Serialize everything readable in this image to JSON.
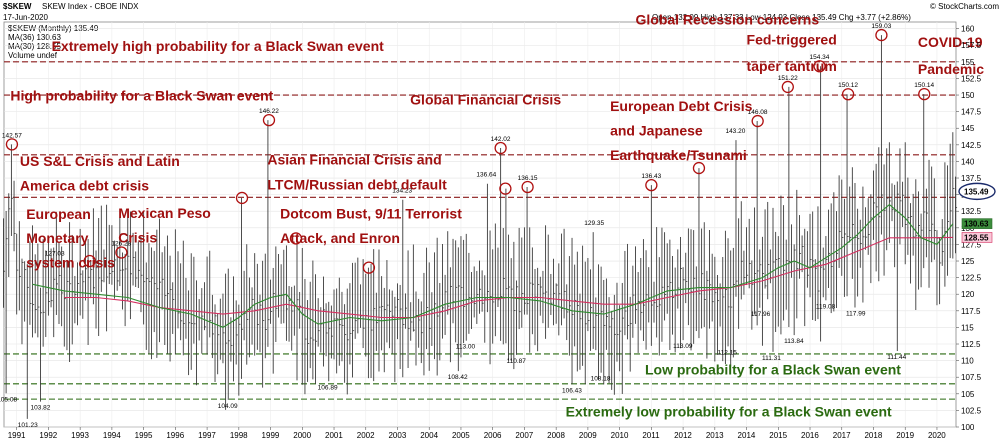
{
  "header": {
    "symbol": "$SKEW",
    "name": "SKEW Index - CBOE INDX",
    "date": "17-Jun-2020",
    "brand": "© StockCharts.com",
    "ohlc": "Open 132.09  High 137.33  Low 124.93  Close 135.49  Chg +3.77 (+2.86%)",
    "legend_price": "$SKEW (Monthly) 135.49",
    "legend_ma1": "MA(36) 130.63",
    "legend_ma2": "MA(30) 128.55",
    "legend_volume": "Volume undef"
  },
  "colors": {
    "price": "#3a3a3a",
    "ma_fast": "#2e8b2e",
    "ma_slow": "#d43060",
    "red_label": "#a01010",
    "green_label": "#2a6a10",
    "red_line": "#8b1a1a",
    "green_line": "#2a6a10"
  },
  "chart_data": {
    "type": "line",
    "title": "$SKEW SKEW Index - CBOE INDX",
    "ylim": [
      100,
      161
    ],
    "xlim": [
      1990.6,
      2020.6
    ],
    "y_ticks": [
      100,
      102.5,
      105,
      107.5,
      110,
      112.5,
      115,
      117.5,
      120,
      122.5,
      125,
      127.5,
      130,
      132.5,
      135,
      137.5,
      140,
      142.5,
      145,
      147.5,
      150,
      152.5,
      155,
      157.5,
      160
    ],
    "x_ticks": [
      "1991",
      "1992",
      "1993",
      "1994",
      "1995",
      "1996",
      "1997",
      "1998",
      "1999",
      "2000",
      "2001",
      "2002",
      "2003",
      "2004",
      "2005",
      "2006",
      "2007",
      "2008",
      "2009",
      "2010",
      "2011",
      "2012",
      "2013",
      "2014",
      "2015",
      "2016",
      "2017",
      "2018",
      "2019",
      "2020"
    ],
    "x_tick_values": [
      1991,
      1992,
      1993,
      1994,
      1995,
      1996,
      1997,
      1998,
      1999,
      2000,
      2001,
      2002,
      2003,
      2004,
      2005,
      2006,
      2007,
      2008,
      2009,
      2010,
      2011,
      2012,
      2013,
      2014,
      2015,
      2016,
      2017,
      2018,
      2019,
      2020
    ],
    "anchors": {
      "x": [
        1990.6,
        1990.8,
        1991.0,
        1991.4,
        1991.8,
        1992.2,
        1992.7,
        1993.2,
        1993.7,
        1994.2,
        1994.7,
        1995.2,
        1995.8,
        1996.5,
        1997.0,
        1997.6,
        1998.0,
        1998.4,
        1998.8,
        1999.2,
        1999.7,
        2000.2,
        2000.7,
        2001.3,
        2001.8,
        2002.3,
        2002.7,
        2003.2,
        2003.8,
        2004.3,
        2004.9,
        2005.4,
        2005.9,
        2006.3,
        2006.8,
        2007.3,
        2007.8,
        2008.3,
        2008.8,
        2009.4,
        2009.9,
        2010.4,
        2010.9,
        2011.4,
        2011.9,
        2012.4,
        2012.9,
        2013.4,
        2013.9,
        2014.3,
        2014.8,
        2015.3,
        2015.8,
        2016.2,
        2016.7,
        2017.2,
        2017.6,
        2018.0,
        2018.5,
        2018.9,
        2019.3,
        2019.7,
        2020.1,
        2020.5
      ],
      "y": [
        125,
        135,
        125,
        120,
        118,
        122,
        120,
        122,
        124,
        124,
        124,
        121,
        120,
        116,
        117,
        113,
        115,
        118,
        116,
        120,
        119,
        114,
        116,
        114,
        117,
        116,
        118,
        117,
        116,
        118,
        120,
        120,
        120,
        121,
        119,
        121,
        120,
        119,
        117,
        116,
        114,
        118,
        120,
        119,
        122,
        122,
        120,
        119,
        124,
        122,
        124,
        125,
        126,
        122,
        126,
        130,
        129,
        132,
        134,
        134,
        128,
        132,
        126,
        134
      ]
    },
    "ma_fast": {
      "x": [
        1991.5,
        1992.5,
        1993.5,
        1994.5,
        1995.5,
        1996.5,
        1997.5,
        1998.0,
        1998.5,
        1999.0,
        1999.5,
        2000.0,
        2000.5,
        2001.5,
        2002.5,
        2003.5,
        2004.5,
        2005.5,
        2006.5,
        2007.5,
        2008.5,
        2009.5,
        2010.5,
        2011.5,
        2012.5,
        2013.5,
        2014.5,
        2015.0,
        2015.5,
        2016.0,
        2016.5,
        2017.0,
        2017.5,
        2018.0,
        2018.5,
        2019.0,
        2019.5,
        2020.0,
        2020.5
      ],
      "y": [
        121.5,
        120.5,
        120.0,
        119.5,
        118.0,
        117.0,
        115.0,
        116.5,
        118.5,
        119.5,
        120.0,
        117.0,
        115.5,
        116.5,
        116.0,
        116.5,
        118.5,
        119.5,
        119.5,
        119.0,
        117.5,
        117.0,
        118.5,
        120.5,
        121.0,
        121.0,
        122.5,
        124.0,
        125.0,
        124.0,
        125.5,
        127.0,
        129.0,
        131.5,
        133.5,
        131.5,
        128.5,
        127.5,
        130.6
      ]
    },
    "ma_slow": {
      "x": [
        1992.5,
        1993.5,
        1994.5,
        1995.5,
        1996.5,
        1997.5,
        1998.5,
        1999.5,
        2000.5,
        2001.5,
        2002.5,
        2003.5,
        2004.5,
        2005.5,
        2006.5,
        2007.5,
        2008.5,
        2009.5,
        2010.5,
        2011.5,
        2012.5,
        2013.5,
        2014.5,
        2015.5,
        2016.5,
        2017.5,
        2018.5,
        2019.5,
        2020.5
      ],
      "y": [
        119.5,
        119.5,
        119.0,
        118.0,
        117.5,
        117.0,
        117.5,
        118.5,
        117.5,
        117.0,
        116.5,
        116.5,
        117.5,
        119.0,
        119.5,
        119.5,
        119.0,
        118.5,
        118.5,
        119.5,
        120.5,
        121.0,
        122.0,
        123.5,
        124.5,
        126.5,
        128.5,
        128.5,
        128.55
      ]
    },
    "point_labels": [
      {
        "x": 1990.85,
        "y": 142.57,
        "label": "142.57",
        "circle": true
      },
      {
        "x": 1990.7,
        "y": 105.08,
        "label": "105.08",
        "circle": false
      },
      {
        "x": 1991.35,
        "y": 101.23,
        "label": "101.23",
        "circle": false
      },
      {
        "x": 1991.75,
        "y": 103.82,
        "label": "103.82",
        "circle": false
      },
      {
        "x": 1992.2,
        "y": 127.03,
        "label": "127.03",
        "circle": false
      },
      {
        "x": 1993.3,
        "y": 125.0,
        "label": "",
        "circle": true
      },
      {
        "x": 1994.3,
        "y": 126.28,
        "label": "126.28",
        "circle": true
      },
      {
        "x": 1997.65,
        "y": 104.09,
        "label": "104.09",
        "circle": false
      },
      {
        "x": 1998.1,
        "y": 134.5,
        "label": "",
        "circle": true
      },
      {
        "x": 1998.95,
        "y": 146.22,
        "label": "146.22",
        "circle": true
      },
      {
        "x": 1999.8,
        "y": 128.4,
        "label": "",
        "circle": true
      },
      {
        "x": 2000.8,
        "y": 106.89,
        "label": "106.89",
        "circle": false
      },
      {
        "x": 2002.1,
        "y": 124.0,
        "label": "",
        "circle": true
      },
      {
        "x": 2003.15,
        "y": 134.23,
        "label": "134.23",
        "circle": false
      },
      {
        "x": 2004.9,
        "y": 108.42,
        "label": "108.42",
        "circle": false
      },
      {
        "x": 2005.15,
        "y": 113.0,
        "label": "113.00",
        "circle": false
      },
      {
        "x": 2005.8,
        "y": 136.64,
        "label": "136.64",
        "circle": false
      },
      {
        "x": 2006.25,
        "y": 142.02,
        "label": "142.02",
        "circle": true
      },
      {
        "x": 2006.4,
        "y": 135.9,
        "label": "",
        "circle": true
      },
      {
        "x": 2006.75,
        "y": 110.87,
        "label": "110.87",
        "circle": false
      },
      {
        "x": 2007.1,
        "y": 136.15,
        "label": "136.15",
        "circle": true
      },
      {
        "x": 2008.5,
        "y": 106.43,
        "label": "106.43",
        "circle": false
      },
      {
        "x": 2009.2,
        "y": 129.35,
        "label": "129.35",
        "circle": false
      },
      {
        "x": 2009.4,
        "y": 108.18,
        "label": "108.18",
        "circle": false
      },
      {
        "x": 2011.0,
        "y": 136.43,
        "label": "136.43",
        "circle": true
      },
      {
        "x": 2012.0,
        "y": 113.09,
        "label": "113.09",
        "circle": false
      },
      {
        "x": 2012.5,
        "y": 139.0,
        "label": "",
        "circle": true
      },
      {
        "x": 2013.4,
        "y": 112.15,
        "label": "112.15",
        "circle": false
      },
      {
        "x": 2013.65,
        "y": 143.2,
        "label": "143.20",
        "circle": false
      },
      {
        "x": 2014.35,
        "y": 146.08,
        "label": "146.08",
        "circle": true
      },
      {
        "x": 2014.45,
        "y": 117.96,
        "label": "117.96",
        "circle": false
      },
      {
        "x": 2014.8,
        "y": 111.31,
        "label": "111.31",
        "circle": false
      },
      {
        "x": 2015.3,
        "y": 151.22,
        "label": "151.22",
        "circle": true
      },
      {
        "x": 2015.5,
        "y": 113.84,
        "label": "113.84",
        "circle": false
      },
      {
        "x": 2016.3,
        "y": 154.34,
        "label": "154.34",
        "circle": true
      },
      {
        "x": 2016.5,
        "y": 119.08,
        "label": "119.08",
        "circle": false
      },
      {
        "x": 2017.2,
        "y": 150.12,
        "label": "150.12",
        "circle": true
      },
      {
        "x": 2017.45,
        "y": 117.99,
        "label": "117.99",
        "circle": false
      },
      {
        "x": 2018.25,
        "y": 159.03,
        "label": "159.03",
        "circle": true
      },
      {
        "x": 2018.75,
        "y": 111.44,
        "label": "111.44",
        "circle": false
      },
      {
        "x": 2019.6,
        "y": 150.14,
        "label": "150.14",
        "circle": true
      }
    ],
    "hlines": [
      {
        "y": 155.0,
        "color": "red",
        "dash": true
      },
      {
        "y": 150.0,
        "color": "red",
        "dash": true
      },
      {
        "y": 141.0,
        "color": "red",
        "dash": true
      },
      {
        "y": 134.6,
        "color": "red",
        "dash": true
      },
      {
        "y": 111.0,
        "color": "green",
        "dash": true
      },
      {
        "y": 106.5,
        "color": "green",
        "dash": true
      },
      {
        "y": 104.2,
        "color": "green",
        "dash": true
      }
    ],
    "price_tags": [
      {
        "y": 135.49,
        "label": "135.49",
        "style": "circle"
      },
      {
        "y": 130.63,
        "label": "130.63",
        "style": "green"
      },
      {
        "y": 128.55,
        "label": "128.55",
        "style": "pink"
      }
    ],
    "annotations": [
      {
        "text": "Global Recession concerns",
        "x": 2010.5,
        "y": 160.6,
        "color": "red"
      },
      {
        "text": "Extremely high probability for a Black Swan event",
        "x": 1992.1,
        "y": 156.6,
        "color": "red"
      },
      {
        "text": "Fed-triggered",
        "x": 2014.0,
        "y": 157.6,
        "color": "red"
      },
      {
        "text": "taper tantrum",
        "x": 2014.0,
        "y": 153.6,
        "color": "red"
      },
      {
        "text": "COVID-19",
        "x": 2019.4,
        "y": 157.2,
        "color": "red"
      },
      {
        "text": "Pandemic",
        "x": 2019.4,
        "y": 153.2,
        "color": "red"
      },
      {
        "text": "High probability for a Black Swan event",
        "x": 1990.8,
        "y": 149.2,
        "color": "red"
      },
      {
        "text": "Global Financial Crisis",
        "x": 2003.4,
        "y": 148.6,
        "color": "red"
      },
      {
        "text": "European Debt Crisis",
        "x": 2009.7,
        "y": 147.6,
        "color": "red"
      },
      {
        "text": "and Japanese",
        "x": 2009.7,
        "y": 143.9,
        "color": "red"
      },
      {
        "text": "Earthquake/Tsunami",
        "x": 2009.7,
        "y": 140.2,
        "color": "red"
      },
      {
        "text": "US S&L Crisis and Latin",
        "x": 1991.1,
        "y": 139.3,
        "color": "red"
      },
      {
        "text": "America debt crisis",
        "x": 1991.1,
        "y": 135.6,
        "color": "red"
      },
      {
        "text": "Asian Financial Crisis and",
        "x": 1998.9,
        "y": 139.5,
        "color": "red"
      },
      {
        "text": "LTCM/Russian debt default",
        "x": 1998.9,
        "y": 135.8,
        "color": "red"
      },
      {
        "text": "European",
        "x": 1991.3,
        "y": 131.3,
        "color": "red"
      },
      {
        "text": "Monetary",
        "x": 1991.3,
        "y": 127.7,
        "color": "red"
      },
      {
        "text": "system crisis",
        "x": 1991.3,
        "y": 124.0,
        "color": "red"
      },
      {
        "text": "Mexican Peso",
        "x": 1994.2,
        "y": 131.5,
        "color": "red"
      },
      {
        "text": "Crisis",
        "x": 1994.2,
        "y": 127.8,
        "color": "red"
      },
      {
        "text": "Dotcom Bust, 9/11 Terrorist",
        "x": 1999.3,
        "y": 131.4,
        "color": "red"
      },
      {
        "text": "Attack, and Enron",
        "x": 1999.3,
        "y": 127.7,
        "color": "red"
      },
      {
        "text": "Low probabilty for a Black Swan event",
        "x": 2010.8,
        "y": 107.9,
        "color": "green"
      },
      {
        "text": "Extremely low probability for a Black Swan event",
        "x": 2008.3,
        "y": 101.6,
        "color": "green"
      }
    ]
  }
}
